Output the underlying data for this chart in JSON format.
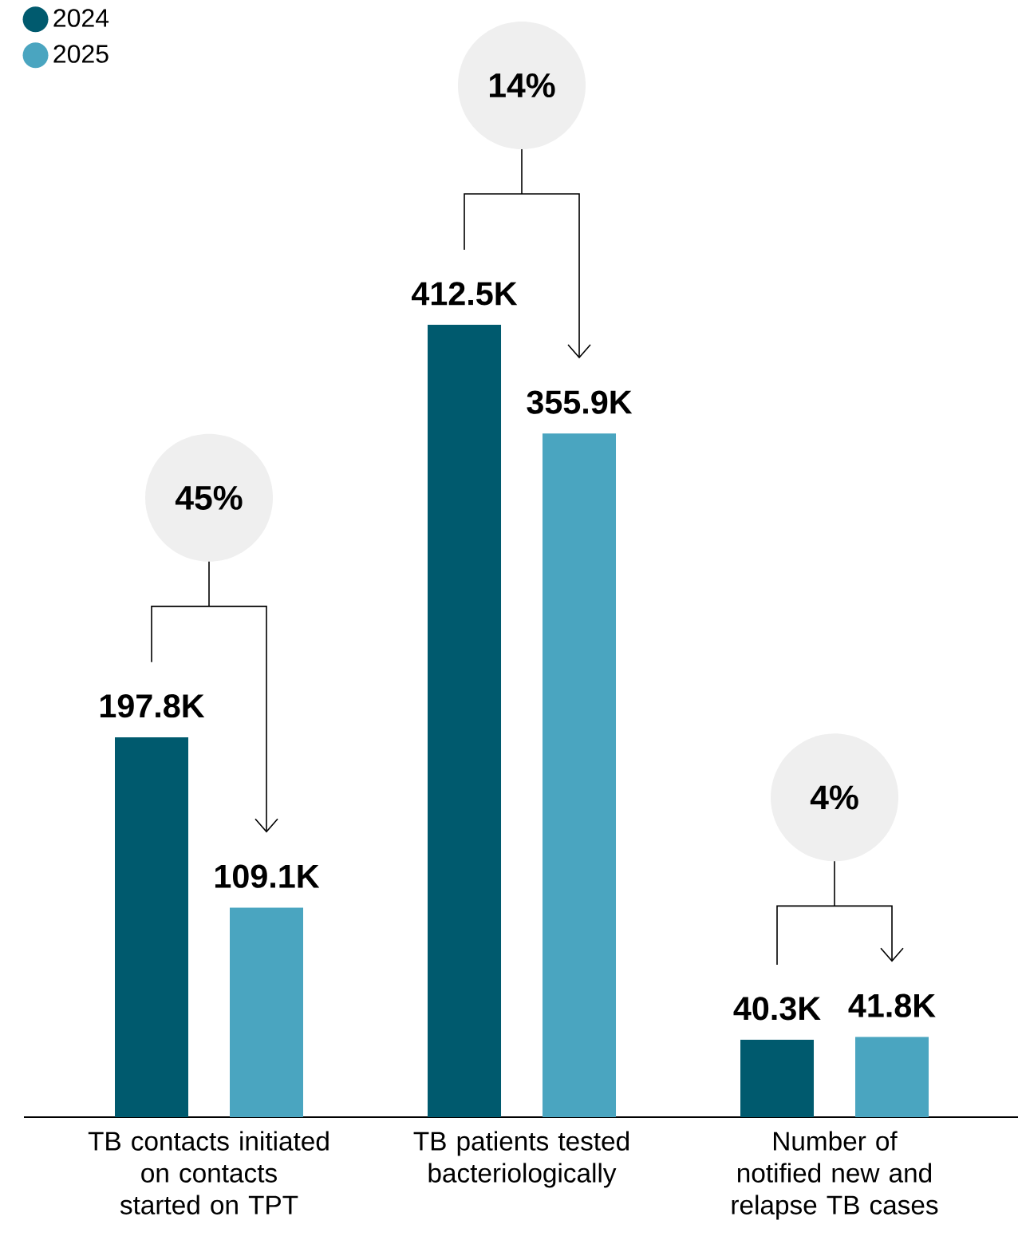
{
  "chart_data": {
    "type": "bar",
    "categories": [
      "TB contacts initiated on contacts started on TPT",
      "TB patients tested bacteriologically",
      "Number of notified new and relapse TB cases"
    ],
    "series": [
      {
        "name": "2024",
        "color": "#005a6e",
        "values": [
          197.8,
          412.5,
          40.3
        ],
        "value_labels": [
          "197.8K",
          "412.5K",
          "40.3K"
        ]
      },
      {
        "name": "2025",
        "color": "#4aa5c0",
        "values": [
          109.1,
          355.9,
          41.8
        ],
        "value_labels": [
          "109.1K",
          "355.9K",
          "41.8K"
        ]
      }
    ],
    "annotations": [
      "45%",
      "14%",
      "4%"
    ],
    "legend": "top left"
  }
}
